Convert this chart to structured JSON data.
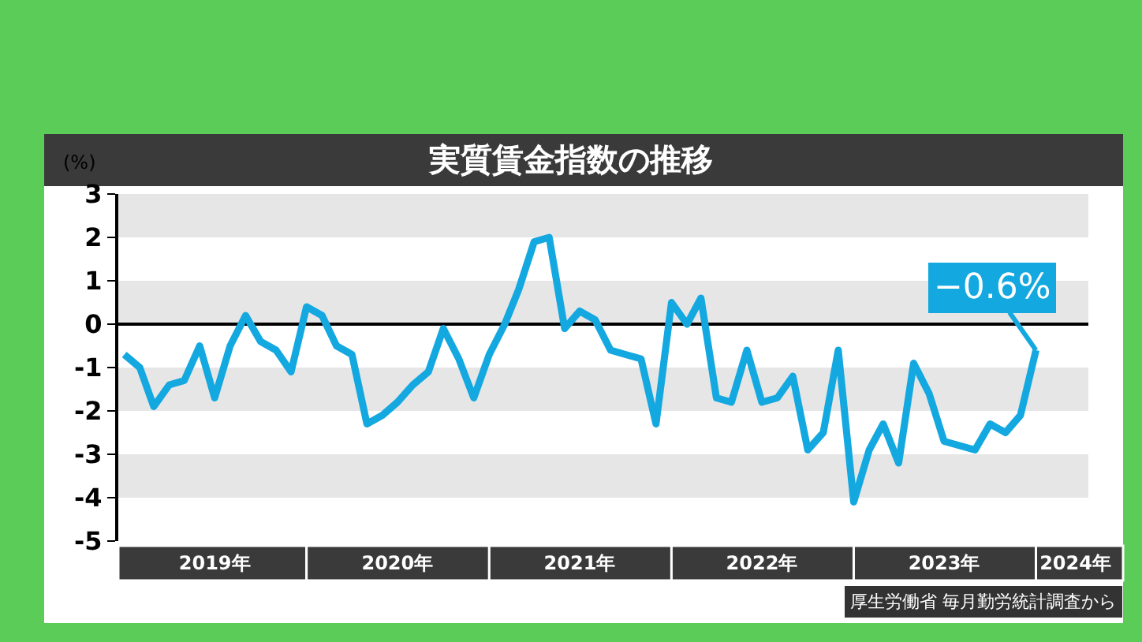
{
  "chart_data": {
    "type": "line",
    "title": "実質賃金指数の推移",
    "ylabel": "(%)",
    "x": [
      "2019-01",
      "2019-02",
      "2019-03",
      "2019-04",
      "2019-05",
      "2019-06",
      "2019-07",
      "2019-08",
      "2019-09",
      "2019-10",
      "2019-11",
      "2019-12",
      "2020-01",
      "2020-02",
      "2020-03",
      "2020-04",
      "2020-05",
      "2020-06",
      "2020-07",
      "2020-08",
      "2020-09",
      "2020-10",
      "2020-11",
      "2020-12",
      "2021-01",
      "2021-02",
      "2021-03",
      "2021-04",
      "2021-05",
      "2021-06",
      "2021-07",
      "2021-08",
      "2021-09",
      "2021-10",
      "2021-11",
      "2021-12",
      "2022-01",
      "2022-02",
      "2022-03",
      "2022-04",
      "2022-05",
      "2022-06",
      "2022-07",
      "2022-08",
      "2022-09",
      "2022-10",
      "2022-11",
      "2022-12",
      "2023-01",
      "2023-02",
      "2023-03",
      "2023-04",
      "2023-05",
      "2023-06",
      "2023-07",
      "2023-08",
      "2023-09",
      "2023-10",
      "2023-11",
      "2023-12",
      "2024-01"
    ],
    "series": [
      {
        "color": "#14a8e0",
        "values": [
          -0.7,
          -1.0,
          -1.9,
          -1.4,
          -1.3,
          -0.5,
          -1.7,
          -0.5,
          0.2,
          -0.4,
          -0.6,
          -1.1,
          0.4,
          0.2,
          -0.5,
          -0.7,
          -2.3,
          -2.1,
          -1.8,
          -1.4,
          -1.1,
          -0.1,
          -0.8,
          -1.7,
          -0.7,
          0.0,
          0.8,
          1.9,
          2.0,
          -0.1,
          0.3,
          0.1,
          -0.6,
          -0.7,
          -0.8,
          -2.3,
          0.5,
          0.0,
          0.6,
          -1.7,
          -1.8,
          -0.6,
          -1.8,
          -1.7,
          -1.2,
          -2.9,
          -2.5,
          -0.6,
          -4.1,
          -2.9,
          -2.3,
          -3.2,
          -0.9,
          -1.6,
          -2.7,
          -2.8,
          -2.9,
          -2.3,
          -2.5,
          -2.1,
          -0.6
        ]
      }
    ],
    "ylim": [
      -5,
      3
    ],
    "yticks": [
      -5,
      -4,
      -3,
      -2,
      -1,
      0,
      1,
      2,
      3
    ],
    "xlim": [
      "2018-12-20",
      "2024-04-15"
    ],
    "xticks": [
      {
        "value": "2019-07-01",
        "label": "2019年"
      },
      {
        "value": "2020-07-01",
        "label": "2020年"
      },
      {
        "value": "2021-07-01",
        "label": "2021年"
      },
      {
        "value": "2022-07-01",
        "label": "2022年"
      },
      {
        "value": "2023-07-01",
        "label": "2023年"
      },
      {
        "value": "2024-03-20",
        "label": "2024年"
      }
    ],
    "marker": "none",
    "line_style": "solid",
    "bands": [
      {
        "axis": "y",
        "from": 2,
        "to": 3,
        "color": "#e6e6e6"
      },
      {
        "axis": "y",
        "from": 0,
        "to": 1,
        "color": "#e6e6e6"
      },
      {
        "axis": "y",
        "from": -2,
        "to": -1,
        "color": "#e6e6e6"
      },
      {
        "axis": "y",
        "from": -4,
        "to": -3,
        "color": "#e6e6e6"
      }
    ],
    "ref_lines": [
      {
        "axis": "y",
        "value": 0,
        "color": "#000000"
      }
    ],
    "annotations": [
      {
        "text": "−0.6%",
        "x": "2024-01",
        "y": -0.6
      },
      "厚生労働省 毎月勤労統計調査から"
    ]
  }
}
